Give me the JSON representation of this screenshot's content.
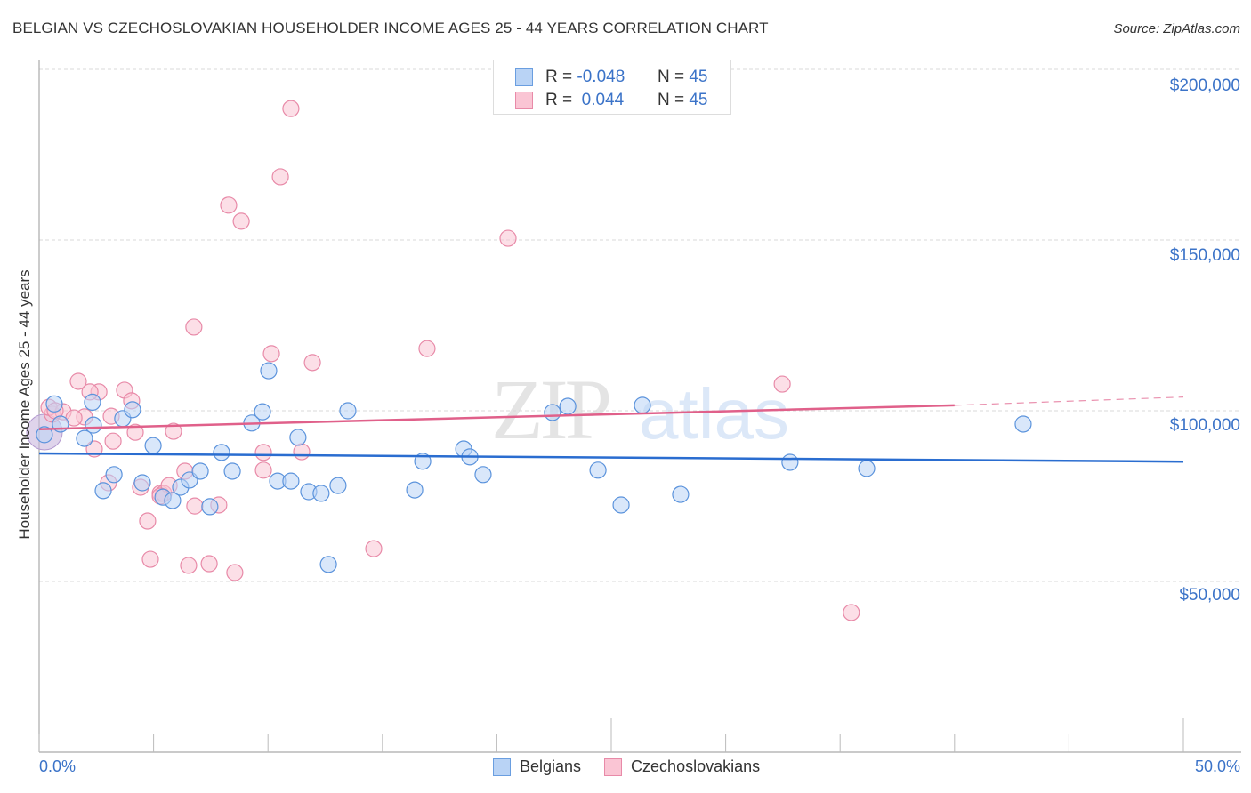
{
  "header": {
    "title": "BELGIAN VS CZECHOSLOVAKIAN HOUSEHOLDER INCOME AGES 25 - 44 YEARS CORRELATION CHART",
    "source": "Source: ZipAtlas.com"
  },
  "watermark": {
    "zip": "ZIP",
    "atlas": "atlas"
  },
  "legend_top": {
    "rows": [
      {
        "r_label": "R =",
        "r_value": "-0.048",
        "n_label": "N =",
        "n_value": "45"
      },
      {
        "r_label": "R =",
        "r_value": " 0.044",
        "n_label": "N =",
        "n_value": "45"
      }
    ]
  },
  "legend_bottom": {
    "series": [
      "Belgians",
      "Czechoslovakians"
    ]
  },
  "colors": {
    "belgians_fill": "#b9d3f5",
    "belgians_stroke": "#5b93dc",
    "belgians_line": "#2a6dd0",
    "czech_fill": "#fac5d4",
    "czech_stroke": "#e88aa8",
    "czech_line": "#e0608a",
    "tick_text": "#3b73c8"
  },
  "chart_data": {
    "type": "scatter",
    "title": "BELGIAN VS CZECHOSLOVAKIAN HOUSEHOLDER INCOME AGES 25 - 44 YEARS CORRELATION CHART",
    "xlabel": "",
    "ylabel": "Householder Income Ages 25 - 44 years",
    "xlim": [
      0,
      50
    ],
    "ylim": [
      0,
      200000
    ],
    "x_tick_labels": [
      "0.0%",
      "50.0%"
    ],
    "y_ticks": [
      50000,
      100000,
      150000,
      200000
    ],
    "y_tick_labels": [
      "$50,000",
      "$100,000",
      "$150,000",
      "$200,000"
    ],
    "grid": true,
    "legend_position": "bottom",
    "series": [
      {
        "name": "Belgians",
        "r": -0.048,
        "n": 45,
        "trend": {
          "x": [
            0,
            50
          ],
          "y": [
            87500,
            85100
          ]
        },
        "points": [
          [
            0.66,
            102000
          ],
          [
            2.33,
            102500
          ],
          [
            1.98,
            91900
          ],
          [
            0.93,
            96100
          ],
          [
            0.23,
            93000
          ],
          [
            3.65,
            97700
          ],
          [
            4.08,
            100300
          ],
          [
            2.37,
            95800
          ],
          [
            3.27,
            81300
          ],
          [
            2.8,
            76600
          ],
          [
            4.51,
            78900
          ],
          [
            4.98,
            89800
          ],
          [
            5.41,
            74700
          ],
          [
            5.83,
            73700
          ],
          [
            6.18,
            77600
          ],
          [
            6.57,
            79700
          ],
          [
            7.04,
            82300
          ],
          [
            7.46,
            71900
          ],
          [
            7.97,
            87800
          ],
          [
            8.44,
            82300
          ],
          [
            9.29,
            96400
          ],
          [
            9.76,
            99700
          ],
          [
            10.03,
            111700
          ],
          [
            10.42,
            79400
          ],
          [
            11.0,
            79400
          ],
          [
            11.31,
            92200
          ],
          [
            11.78,
            76300
          ],
          [
            12.32,
            75800
          ],
          [
            13.06,
            78100
          ],
          [
            12.64,
            55000
          ],
          [
            13.49,
            100000
          ],
          [
            16.41,
            76800
          ],
          [
            16.76,
            85200
          ],
          [
            18.55,
            88800
          ],
          [
            18.82,
            86500
          ],
          [
            19.4,
            81300
          ],
          [
            22.43,
            99500
          ],
          [
            23.1,
            101300
          ],
          [
            24.42,
            82600
          ],
          [
            25.43,
            72400
          ],
          [
            26.36,
            101600
          ],
          [
            28.03,
            75500
          ],
          [
            32.81,
            84900
          ],
          [
            36.16,
            83100
          ],
          [
            43.0,
            96100
          ]
        ]
      },
      {
        "name": "Czechoslovakians",
        "r": 0.044,
        "n": 45,
        "trend": {
          "x": [
            0,
            40
          ],
          "y": [
            94600,
            101600
          ]
        },
        "trend_dashed": {
          "x": [
            40,
            50
          ],
          "y": [
            101600,
            104000
          ]
        },
        "points": [
          [
            11.0,
            188500
          ],
          [
            10.54,
            168500
          ],
          [
            8.28,
            160200
          ],
          [
            8.83,
            155500
          ],
          [
            20.49,
            150500
          ],
          [
            6.76,
            124500
          ],
          [
            16.95,
            118200
          ],
          [
            10.15,
            116700
          ],
          [
            11.94,
            114100
          ],
          [
            1.71,
            108600
          ],
          [
            32.47,
            107800
          ],
          [
            0.58,
            99000
          ],
          [
            0.43,
            101000
          ],
          [
            1.05,
            99700
          ],
          [
            1.98,
            98200
          ],
          [
            2.61,
            105500
          ],
          [
            2.22,
            105500
          ],
          [
            3.73,
            106000
          ],
          [
            4.04,
            102900
          ],
          [
            3.23,
            91100
          ],
          [
            4.2,
            93700
          ],
          [
            3.15,
            98400
          ],
          [
            2.41,
            88800
          ],
          [
            3.03,
            78900
          ],
          [
            4.43,
            77600
          ],
          [
            4.74,
            67700
          ],
          [
            4.86,
            56500
          ],
          [
            5.29,
            75800
          ],
          [
            5.44,
            75800
          ],
          [
            5.68,
            78100
          ],
          [
            5.87,
            94000
          ],
          [
            6.37,
            82300
          ],
          [
            6.53,
            54700
          ],
          [
            6.8,
            72100
          ],
          [
            7.43,
            55200
          ],
          [
            7.85,
            72400
          ],
          [
            8.55,
            52600
          ],
          [
            9.8,
            82600
          ],
          [
            9.8,
            87800
          ],
          [
            11.47,
            88000
          ],
          [
            14.62,
            59600
          ],
          [
            35.49,
            40900
          ],
          [
            0.7,
            100000
          ],
          [
            1.52,
            97900
          ],
          [
            5.29,
            75000
          ]
        ]
      }
    ]
  }
}
